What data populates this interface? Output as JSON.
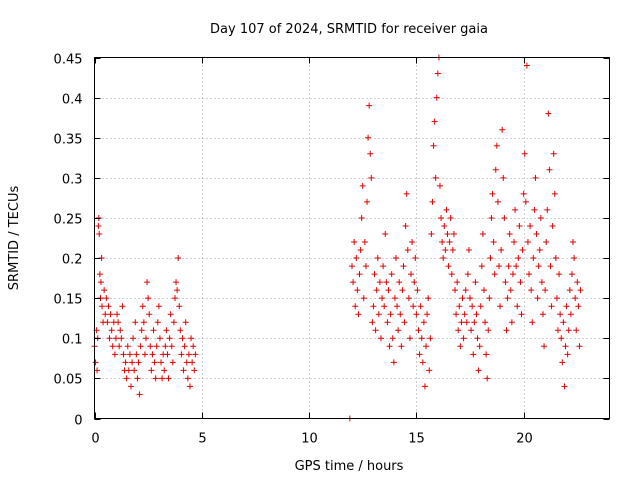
{
  "chart_data": {
    "type": "scatter",
    "title": "Day 107 of 2024, SRMTID for receiver gaia",
    "xlabel": "GPS time / hours",
    "ylabel": "SRMTID / TECUs",
    "xlim": [
      0,
      24
    ],
    "ylim": [
      0,
      0.45
    ],
    "x_ticks": [
      0,
      5,
      10,
      15,
      20
    ],
    "x_tick_labels": [
      "0",
      "5",
      "10",
      "15",
      "20"
    ],
    "y_ticks": [
      0,
      0.05,
      0.1,
      0.15,
      0.2,
      0.25,
      0.3,
      0.35,
      0.4,
      0.45
    ],
    "y_tick_labels": [
      "0",
      "0.05",
      "0.1",
      "0.15",
      "0.2",
      "0.25",
      "0.3",
      "0.35",
      "0.4",
      "0.45"
    ],
    "grid": true,
    "marker": "+",
    "marker_color": "#e00000",
    "series": [
      {
        "name": "SRMTID",
        "color": "#e00000",
        "points": [
          [
            0.0,
            0.09
          ],
          [
            0.05,
            0.07
          ],
          [
            0.1,
            0.11
          ],
          [
            0.12,
            0.06
          ],
          [
            0.15,
            0.1
          ],
          [
            0.18,
            0.24
          ],
          [
            0.2,
            0.25
          ],
          [
            0.22,
            0.23
          ],
          [
            0.25,
            0.18
          ],
          [
            0.28,
            0.15
          ],
          [
            0.3,
            0.17
          ],
          [
            0.33,
            0.2
          ],
          [
            0.35,
            0.14
          ],
          [
            0.4,
            0.12
          ],
          [
            0.45,
            0.16
          ],
          [
            0.5,
            0.13
          ],
          [
            0.55,
            0.15
          ],
          [
            0.6,
            0.12
          ],
          [
            0.65,
            0.14
          ],
          [
            0.7,
            0.1
          ],
          [
            0.75,
            0.13
          ],
          [
            0.8,
            0.11
          ],
          [
            0.85,
            0.09
          ],
          [
            0.9,
            0.12
          ],
          [
            0.95,
            0.08
          ],
          [
            1.0,
            0.1
          ],
          [
            1.05,
            0.13
          ],
          [
            1.1,
            0.12
          ],
          [
            1.15,
            0.09
          ],
          [
            1.2,
            0.11
          ],
          [
            1.25,
            0.1
          ],
          [
            1.3,
            0.14
          ],
          [
            1.35,
            0.08
          ],
          [
            1.4,
            0.06
          ],
          [
            1.45,
            0.07
          ],
          [
            1.5,
            0.05
          ],
          [
            1.55,
            0.09
          ],
          [
            1.6,
            0.06
          ],
          [
            1.65,
            0.08
          ],
          [
            1.7,
            0.04
          ],
          [
            1.75,
            0.07
          ],
          [
            1.8,
            0.1
          ],
          [
            1.85,
            0.06
          ],
          [
            1.9,
            0.12
          ],
          [
            1.95,
            0.08
          ],
          [
            2.0,
            0.05
          ],
          [
            2.05,
            0.07
          ],
          [
            2.1,
            0.03
          ],
          [
            2.15,
            0.09
          ],
          [
            2.2,
            0.11
          ],
          [
            2.25,
            0.14
          ],
          [
            2.3,
            0.12
          ],
          [
            2.35,
            0.08
          ],
          [
            2.4,
            0.1
          ],
          [
            2.45,
            0.17
          ],
          [
            2.5,
            0.15
          ],
          [
            2.55,
            0.13
          ],
          [
            2.6,
            0.09
          ],
          [
            2.65,
            0.06
          ],
          [
            2.7,
            0.08
          ],
          [
            2.75,
            0.11
          ],
          [
            2.8,
            0.07
          ],
          [
            2.85,
            0.05
          ],
          [
            2.9,
            0.09
          ],
          [
            2.95,
            0.12
          ],
          [
            3.0,
            0.14
          ],
          [
            3.05,
            0.1
          ],
          [
            3.1,
            0.07
          ],
          [
            3.15,
            0.05
          ],
          [
            3.2,
            0.08
          ],
          [
            3.25,
            0.06
          ],
          [
            3.3,
            0.09
          ],
          [
            3.35,
            0.11
          ],
          [
            3.4,
            0.08
          ],
          [
            3.45,
            0.05
          ],
          [
            3.5,
            0.1
          ],
          [
            3.55,
            0.13
          ],
          [
            3.6,
            0.09
          ],
          [
            3.65,
            0.07
          ],
          [
            3.7,
            0.12
          ],
          [
            3.75,
            0.15
          ],
          [
            3.8,
            0.17
          ],
          [
            3.85,
            0.16
          ],
          [
            3.9,
            0.2
          ],
          [
            3.95,
            0.14
          ],
          [
            4.0,
            0.11
          ],
          [
            4.05,
            0.08
          ],
          [
            4.1,
            0.1
          ],
          [
            4.15,
            0.06
          ],
          [
            4.2,
            0.09
          ],
          [
            4.25,
            0.12
          ],
          [
            4.3,
            0.07
          ],
          [
            4.35,
            0.05
          ],
          [
            4.4,
            0.08
          ],
          [
            4.45,
            0.04
          ],
          [
            4.5,
            0.1
          ],
          [
            4.55,
            0.07
          ],
          [
            4.6,
            0.09
          ],
          [
            4.65,
            0.06
          ],
          [
            4.7,
            0.08
          ],
          [
            11.9,
            0.0
          ],
          [
            12.0,
            0.19
          ],
          [
            12.05,
            0.17
          ],
          [
            12.1,
            0.22
          ],
          [
            12.15,
            0.14
          ],
          [
            12.2,
            0.2
          ],
          [
            12.25,
            0.16
          ],
          [
            12.3,
            0.13
          ],
          [
            12.35,
            0.18
          ],
          [
            12.4,
            0.21
          ],
          [
            12.45,
            0.25
          ],
          [
            12.5,
            0.29
          ],
          [
            12.55,
            0.15
          ],
          [
            12.6,
            0.22
          ],
          [
            12.65,
            0.19
          ],
          [
            12.7,
            0.27
          ],
          [
            12.75,
            0.35
          ],
          [
            12.8,
            0.39
          ],
          [
            12.85,
            0.33
          ],
          [
            12.9,
            0.3
          ],
          [
            12.95,
            0.12
          ],
          [
            13.0,
            0.14
          ],
          [
            13.05,
            0.18
          ],
          [
            13.1,
            0.11
          ],
          [
            13.15,
            0.16
          ],
          [
            13.2,
            0.2
          ],
          [
            13.25,
            0.13
          ],
          [
            13.3,
            0.17
          ],
          [
            13.35,
            0.1
          ],
          [
            13.4,
            0.15
          ],
          [
            13.45,
            0.19
          ],
          [
            13.5,
            0.14
          ],
          [
            13.55,
            0.23
          ],
          [
            13.6,
            0.17
          ],
          [
            13.65,
            0.12
          ],
          [
            13.7,
            0.16
          ],
          [
            13.75,
            0.09
          ],
          [
            13.8,
            0.13
          ],
          [
            13.85,
            0.18
          ],
          [
            13.9,
            0.1
          ],
          [
            13.95,
            0.07
          ],
          [
            14.0,
            0.15
          ],
          [
            14.05,
            0.2
          ],
          [
            14.1,
            0.14
          ],
          [
            14.15,
            0.11
          ],
          [
            14.2,
            0.17
          ],
          [
            14.25,
            0.13
          ],
          [
            14.3,
            0.09
          ],
          [
            14.35,
            0.16
          ],
          [
            14.4,
            0.19
          ],
          [
            14.45,
            0.12
          ],
          [
            14.5,
            0.24
          ],
          [
            14.55,
            0.28
          ],
          [
            14.6,
            0.21
          ],
          [
            14.65,
            0.15
          ],
          [
            14.7,
            0.1
          ],
          [
            14.75,
            0.18
          ],
          [
            14.8,
            0.22
          ],
          [
            14.85,
            0.14
          ],
          [
            14.9,
            0.17
          ],
          [
            14.95,
            0.2
          ],
          [
            15.0,
            0.13
          ],
          [
            15.05,
            0.16
          ],
          [
            15.1,
            0.11
          ],
          [
            15.15,
            0.08
          ],
          [
            15.2,
            0.14
          ],
          [
            15.25,
            0.1
          ],
          [
            15.3,
            0.07
          ],
          [
            15.35,
            0.12
          ],
          [
            15.4,
            0.04
          ],
          [
            15.45,
            0.09
          ],
          [
            15.5,
            0.13
          ],
          [
            15.55,
            0.15
          ],
          [
            15.6,
            0.06
          ],
          [
            15.65,
            0.1
          ],
          [
            15.7,
            0.23
          ],
          [
            15.75,
            0.27
          ],
          [
            15.8,
            0.34
          ],
          [
            15.85,
            0.37
          ],
          [
            15.9,
            0.3
          ],
          [
            15.95,
            0.4
          ],
          [
            16.0,
            0.43
          ],
          [
            16.05,
            0.45
          ],
          [
            16.1,
            0.29
          ],
          [
            16.15,
            0.25
          ],
          [
            16.2,
            0.22
          ],
          [
            16.25,
            0.2
          ],
          [
            16.3,
            0.24
          ],
          [
            16.35,
            0.21
          ],
          [
            16.4,
            0.26
          ],
          [
            16.45,
            0.23
          ],
          [
            16.5,
            0.19
          ],
          [
            16.55,
            0.22
          ],
          [
            16.6,
            0.25
          ],
          [
            16.65,
            0.18
          ],
          [
            16.7,
            0.21
          ],
          [
            16.75,
            0.23
          ],
          [
            16.8,
            0.16
          ],
          [
            16.85,
            0.13
          ],
          [
            16.9,
            0.17
          ],
          [
            16.95,
            0.11
          ],
          [
            17.0,
            0.14
          ],
          [
            17.05,
            0.09
          ],
          [
            17.1,
            0.12
          ],
          [
            17.15,
            0.15
          ],
          [
            17.2,
            0.1
          ],
          [
            17.25,
            0.13
          ],
          [
            17.3,
            0.16
          ],
          [
            17.35,
            0.12
          ],
          [
            17.4,
            0.18
          ],
          [
            17.45,
            0.21
          ],
          [
            17.5,
            0.15
          ],
          [
            17.55,
            0.11
          ],
          [
            17.6,
            0.14
          ],
          [
            17.65,
            0.08
          ],
          [
            17.7,
            0.12
          ],
          [
            17.75,
            0.17
          ],
          [
            17.8,
            0.13
          ],
          [
            17.85,
            0.1
          ],
          [
            17.9,
            0.06
          ],
          [
            17.95,
            0.09
          ],
          [
            18.0,
            0.14
          ],
          [
            18.05,
            0.19
          ],
          [
            18.1,
            0.23
          ],
          [
            18.15,
            0.16
          ],
          [
            18.2,
            0.12
          ],
          [
            18.25,
            0.08
          ],
          [
            18.3,
            0.05
          ],
          [
            18.35,
            0.11
          ],
          [
            18.4,
            0.15
          ],
          [
            18.45,
            0.2
          ],
          [
            18.5,
            0.25
          ],
          [
            18.55,
            0.28
          ],
          [
            18.6,
            0.22
          ],
          [
            18.65,
            0.18
          ],
          [
            18.7,
            0.31
          ],
          [
            18.75,
            0.34
          ],
          [
            18.8,
            0.27
          ],
          [
            18.85,
            0.19
          ],
          [
            18.9,
            0.14
          ],
          [
            18.95,
            0.21
          ],
          [
            19.0,
            0.36
          ],
          [
            19.05,
            0.3
          ],
          [
            19.1,
            0.25
          ],
          [
            19.15,
            0.17
          ],
          [
            19.2,
            0.11
          ],
          [
            19.25,
            0.15
          ],
          [
            19.3,
            0.19
          ],
          [
            19.35,
            0.23
          ],
          [
            19.4,
            0.16
          ],
          [
            19.45,
            0.12
          ],
          [
            19.5,
            0.18
          ],
          [
            19.55,
            0.22
          ],
          [
            19.6,
            0.26
          ],
          [
            19.65,
            0.19
          ],
          [
            19.7,
            0.14
          ],
          [
            19.75,
            0.2
          ],
          [
            19.8,
            0.24
          ],
          [
            19.85,
            0.17
          ],
          [
            19.9,
            0.13
          ],
          [
            19.95,
            0.21
          ],
          [
            20.0,
            0.28
          ],
          [
            20.05,
            0.33
          ],
          [
            20.1,
            0.27
          ],
          [
            20.15,
            0.44
          ],
          [
            20.2,
            0.22
          ],
          [
            20.25,
            0.18
          ],
          [
            20.3,
            0.24
          ],
          [
            20.35,
            0.16
          ],
          [
            20.4,
            0.12
          ],
          [
            20.45,
            0.2
          ],
          [
            20.5,
            0.26
          ],
          [
            20.55,
            0.3
          ],
          [
            20.6,
            0.23
          ],
          [
            20.65,
            0.15
          ],
          [
            20.7,
            0.19
          ],
          [
            20.75,
            0.21
          ],
          [
            20.8,
            0.25
          ],
          [
            20.85,
            0.17
          ],
          [
            20.9,
            0.13
          ],
          [
            20.95,
            0.09
          ],
          [
            21.0,
            0.16
          ],
          [
            21.05,
            0.22
          ],
          [
            21.1,
            0.26
          ],
          [
            21.15,
            0.38
          ],
          [
            21.2,
            0.31
          ],
          [
            21.25,
            0.19
          ],
          [
            21.3,
            0.14
          ],
          [
            21.35,
            0.24
          ],
          [
            21.4,
            0.33
          ],
          [
            21.45,
            0.28
          ],
          [
            21.5,
            0.2
          ],
          [
            21.55,
            0.15
          ],
          [
            21.6,
            0.11
          ],
          [
            21.65,
            0.18
          ],
          [
            21.7,
            0.13
          ],
          [
            21.75,
            0.1
          ],
          [
            21.8,
            0.07
          ],
          [
            21.85,
            0.12
          ],
          [
            21.9,
            0.04
          ],
          [
            21.95,
            0.09
          ],
          [
            22.0,
            0.14
          ],
          [
            22.05,
            0.08
          ],
          [
            22.1,
            0.11
          ],
          [
            22.15,
            0.16
          ],
          [
            22.2,
            0.13
          ],
          [
            22.25,
            0.18
          ],
          [
            22.3,
            0.22
          ],
          [
            22.35,
            0.2
          ],
          [
            22.4,
            0.15
          ],
          [
            22.45,
            0.11
          ],
          [
            22.5,
            0.17
          ],
          [
            22.55,
            0.14
          ],
          [
            22.6,
            0.09
          ],
          [
            22.65,
            0.16
          ]
        ]
      }
    ]
  }
}
